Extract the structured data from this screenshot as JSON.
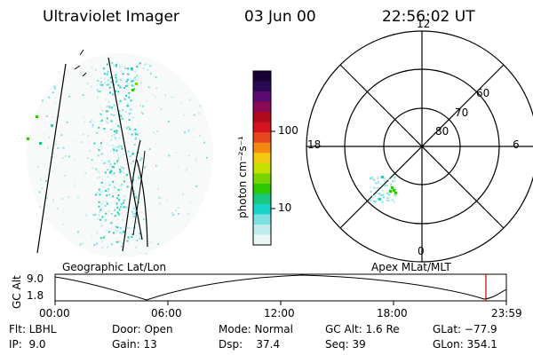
{
  "header": {
    "title": "Ultraviolet Imager",
    "date": "03 Jun 00",
    "time": "22:56:02 UT"
  },
  "panels": {
    "left_caption": "Geographic Lat/Lon",
    "right_caption": "Apex MLat/MLT"
  },
  "colorbar": {
    "unit_label": "photon cm⁻²s⁻¹",
    "ticks": [
      "100",
      "10"
    ],
    "scale": "log",
    "colors": [
      "#1a0033",
      "#2a0a55",
      "#5a0a70",
      "#8a0a55",
      "#b00a1e",
      "#d4141e",
      "#e8461e",
      "#f28a12",
      "#f5c812",
      "#c8e000",
      "#7ad400",
      "#2ec800",
      "#18c880",
      "#1ad2c8",
      "#7ee0e0",
      "#c0ecec",
      "#e8f6f6"
    ]
  },
  "polar": {
    "top_label": "12",
    "bottom_label": "0",
    "left_label": "18",
    "right_label": "6",
    "ring_labels": [
      "60",
      "70",
      "80"
    ]
  },
  "alt_plot": {
    "ylabel": "GC Alt",
    "ytick_top": "9.0",
    "ytick_bottom": "1.8",
    "xticks": [
      "00:00",
      "06:00",
      "12:00",
      "18:00",
      "23:59"
    ],
    "current_marker_color": "#cc0000"
  },
  "info": {
    "row1": {
      "filter": "Flt: LBHL",
      "door": "Door: Open",
      "mode": "Mode: Normal",
      "gc_alt": "GC Alt: 1.6 Re",
      "glat": "GLat: −77.9"
    },
    "row2": {
      "ip": "IP:  9.0",
      "gain": "Gain: 13",
      "dsp": "Dsp:    37.4",
      "seq": "Seq: 39",
      "glon": "GLon: 354.1"
    }
  }
}
